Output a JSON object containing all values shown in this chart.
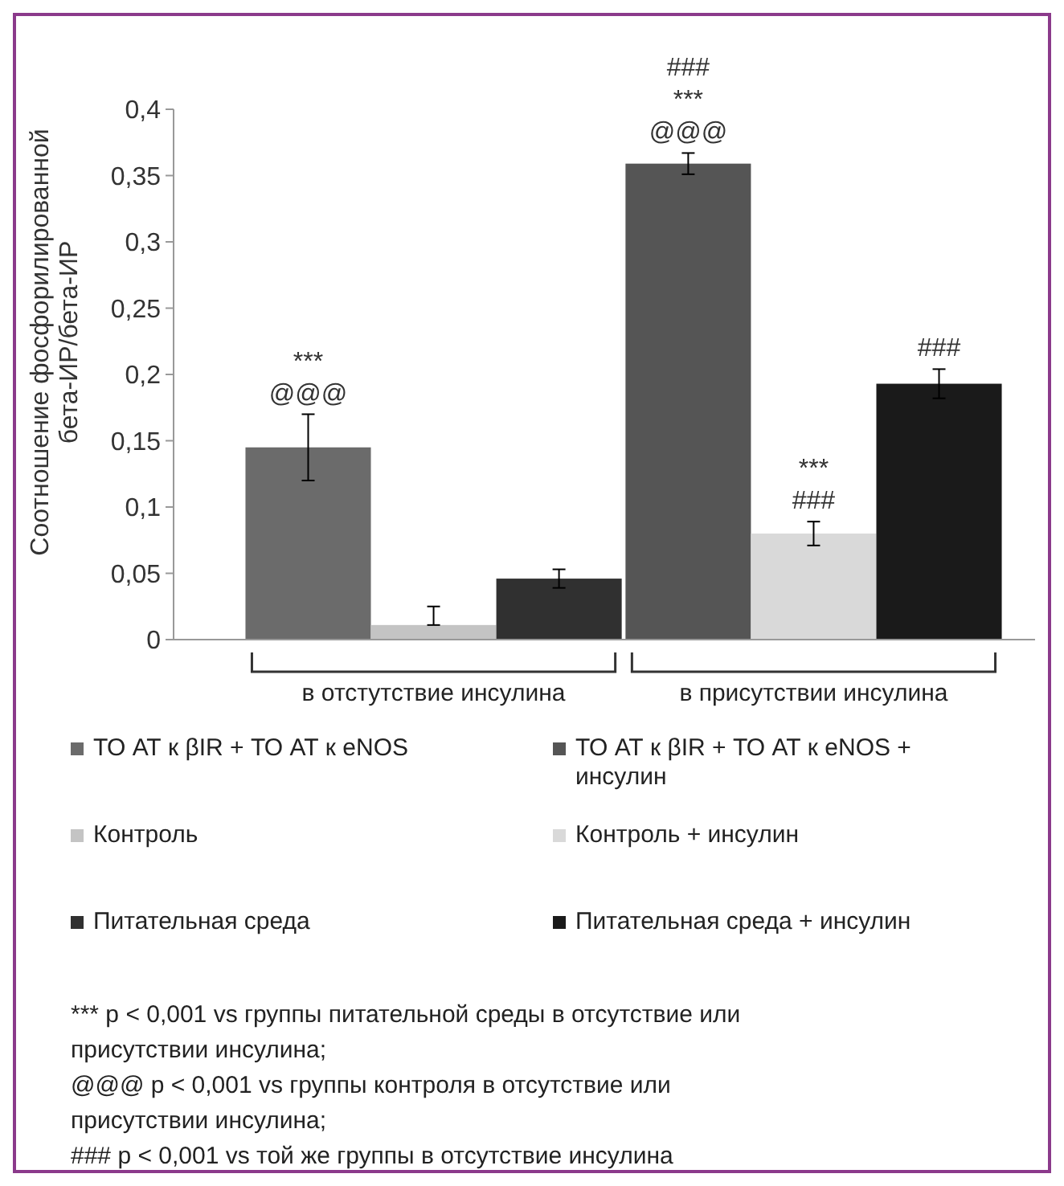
{
  "chart_data": {
    "type": "bar",
    "ylabel": "Соотношение фосфорилированной бета-ИР/бета-ИР",
    "categories": [
      "в отстутствие инсулина",
      "в присутствии инсулина"
    ],
    "series": [
      {
        "name": "ТО АТ к βIR + ТО АТ к eNOS",
        "color": "#6b6b6b",
        "values": [
          0.145,
          null
        ],
        "errors": [
          0.025,
          null
        ],
        "value_labels": [
          "***\n@@@",
          null
        ]
      },
      {
        "name": "ТО АТ к βIR + ТО АТ к eNOS + инсулин",
        "color": "#555555",
        "values": [
          null,
          0.359
        ],
        "errors": [
          null,
          0.008
        ],
        "value_labels": [
          null,
          "###\n***\n@@@"
        ]
      },
      {
        "name": "Контроль",
        "color": "#c4c4c4",
        "values": [
          0.011,
          null
        ],
        "errors": [
          [
            0.011,
            0.025
          ],
          null
        ]
      },
      {
        "name": "Контроль + инсулин",
        "color": "#d9d9d9",
        "values": [
          null,
          0.08
        ],
        "errors": [
          null,
          0.009
        ],
        "value_labels": [
          null,
          "***\n###"
        ]
      },
      {
        "name": "Питательная среда",
        "color": "#303030",
        "values": [
          0.046,
          null
        ],
        "errors": [
          0.007,
          null
        ]
      },
      {
        "name": "Питательная среда + инсулин",
        "color": "#1a1a1a",
        "values": [
          null,
          0.193
        ],
        "errors": [
          null,
          0.011
        ],
        "value_labels": [
          null,
          "###"
        ]
      }
    ],
    "ylim": [
      0,
      0.4
    ],
    "yticks": [
      0,
      {
        "value": 0.05,
        "label": "0,05"
      },
      {
        "value": 0.1,
        "label": "0,1"
      },
      {
        "value": 0.15,
        "label": "0,15"
      },
      {
        "value": 0.2,
        "label": "0,2"
      },
      {
        "value": 0.25,
        "label": "0,25"
      },
      {
        "value": 0.3,
        "label": "0,3"
      },
      {
        "value": 0.35,
        "label": "0,35"
      },
      {
        "value": 0.4,
        "label": "0,4"
      }
    ],
    "grid": false,
    "legend": "bottom",
    "annotations": [
      "*** p < 0,001 vs группы питательной среды в отсутствие или присутствии инсулина;",
      "@@@ p < 0,001 vs группы контроля в отсутствие или присутствии инсулина;",
      "### p < 0,001 vs той же группы в отсутствие инсулина"
    ]
  }
}
